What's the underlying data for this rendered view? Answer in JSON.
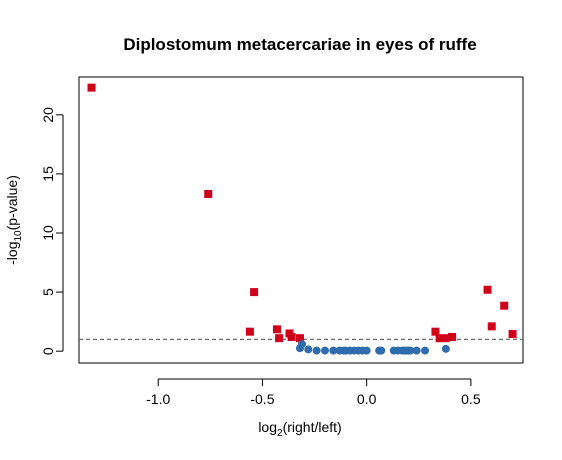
{
  "chart_data": {
    "type": "scatter",
    "title": "Diplostomum metacercariae in eyes of ruffe",
    "xlabel": {
      "prefix": "log",
      "subscript": "2",
      "suffix": "(right/left)"
    },
    "ylabel": {
      "prefix": "-log",
      "subscript": "10",
      "suffix": "(p-value)"
    },
    "xlim": [
      -1.38,
      0.75
    ],
    "ylim": [
      -1.0,
      23.2
    ],
    "xticks": [
      -1.0,
      -0.5,
      0.0,
      0.5
    ],
    "xtick_labels": [
      "-1.0",
      "-0.5",
      "0.0",
      "0.5"
    ],
    "yticks": [
      0,
      5,
      10,
      15,
      20
    ],
    "ytick_labels": [
      "0",
      "5",
      "10",
      "15",
      "20"
    ],
    "threshold": {
      "y": 1.0,
      "style": "dashed",
      "color": "#6e6e6e"
    },
    "grid": false,
    "legend": "none",
    "colors": {
      "significant": "#d0021b",
      "nonsignificant": "#2f6cad"
    },
    "series": [
      {
        "marker": "square",
        "color": "#d0021b",
        "points": [
          [
            -1.32,
            22.3
          ],
          [
            -0.76,
            13.3
          ],
          [
            -0.54,
            5.0
          ],
          [
            -0.56,
            1.65
          ],
          [
            -0.43,
            1.85
          ],
          [
            -0.42,
            1.1
          ],
          [
            -0.37,
            1.5
          ],
          [
            -0.36,
            1.2
          ],
          [
            -0.32,
            1.1
          ],
          [
            0.33,
            1.65
          ],
          [
            0.35,
            1.1
          ],
          [
            0.38,
            1.1
          ],
          [
            0.41,
            1.2
          ],
          [
            0.58,
            5.2
          ],
          [
            0.6,
            2.1
          ],
          [
            0.66,
            3.85
          ],
          [
            0.7,
            1.45
          ]
        ]
      },
      {
        "marker": "circle",
        "color": "#2f6cad",
        "points": [
          [
            -0.32,
            0.25
          ],
          [
            -0.31,
            0.6
          ],
          [
            -0.28,
            0.15
          ],
          [
            -0.24,
            0.05
          ],
          [
            -0.2,
            0.05
          ],
          [
            -0.16,
            0.05
          ],
          [
            -0.13,
            0.05
          ],
          [
            -0.11,
            0.05
          ],
          [
            -0.1,
            0.05
          ],
          [
            -0.08,
            0.05
          ],
          [
            -0.06,
            0.05
          ],
          [
            -0.04,
            0.05
          ],
          [
            -0.02,
            0.05
          ],
          [
            0.0,
            0.05
          ],
          [
            0.06,
            0.05
          ],
          [
            0.07,
            0.05
          ],
          [
            0.13,
            0.05
          ],
          [
            0.15,
            0.05
          ],
          [
            0.17,
            0.05
          ],
          [
            0.18,
            0.05
          ],
          [
            0.19,
            0.05
          ],
          [
            0.2,
            0.05
          ],
          [
            0.21,
            0.05
          ],
          [
            0.24,
            0.05
          ],
          [
            0.28,
            0.05
          ],
          [
            0.38,
            0.2
          ]
        ]
      }
    ]
  }
}
